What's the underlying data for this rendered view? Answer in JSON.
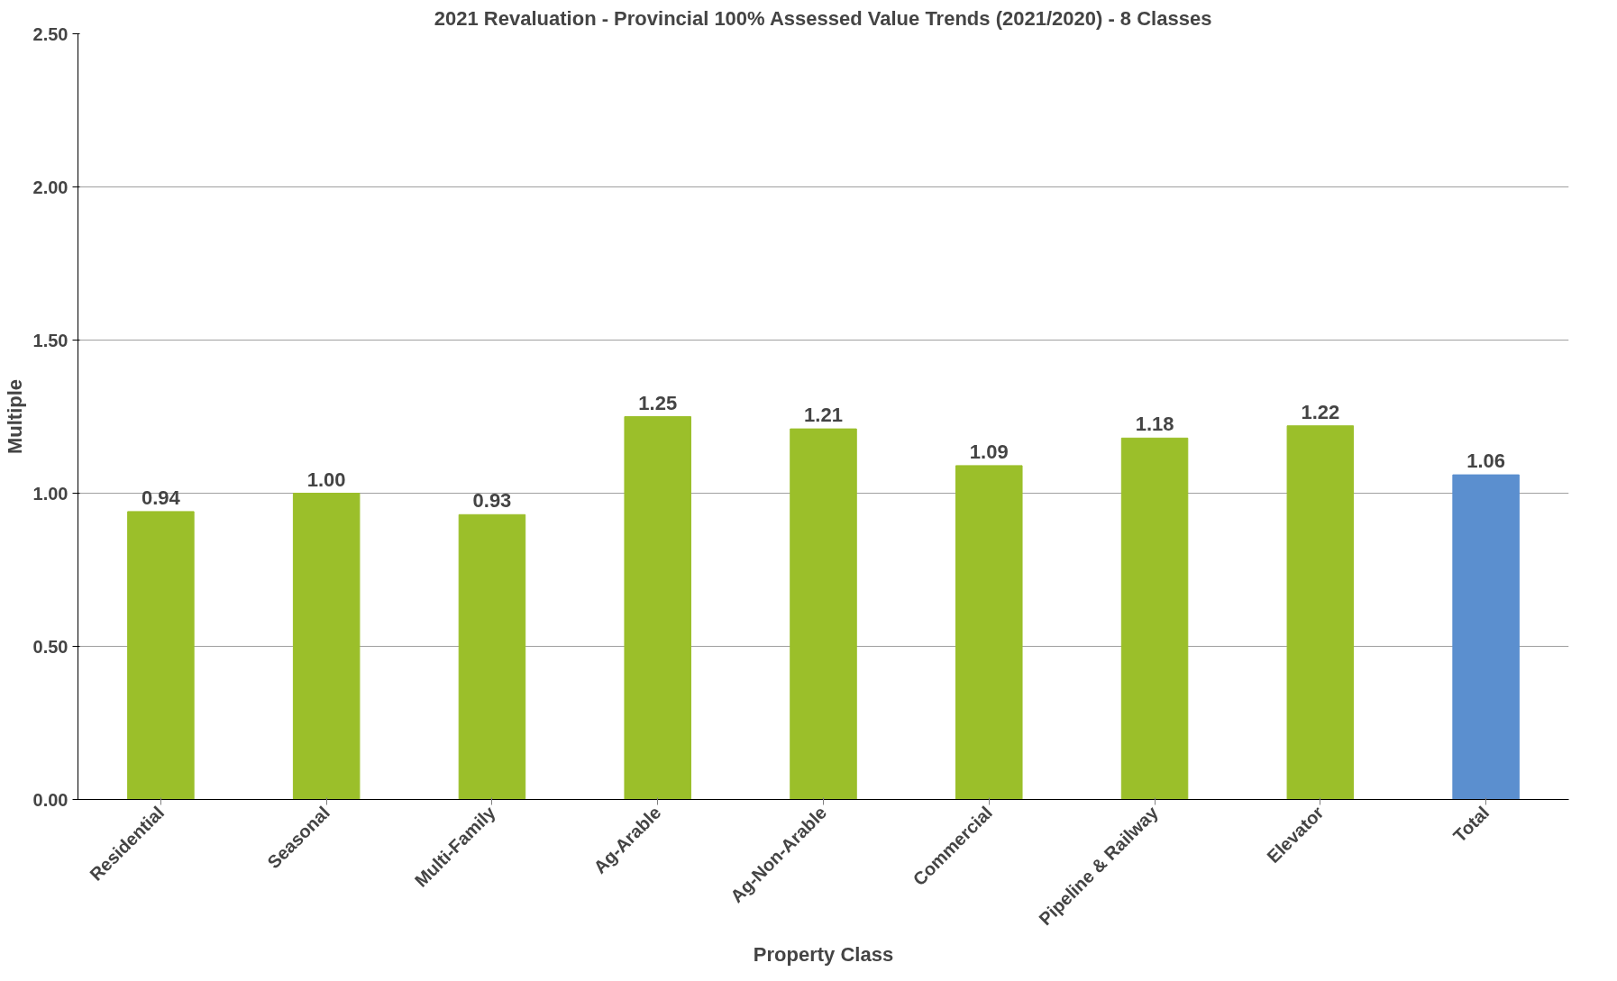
{
  "chart_data": {
    "type": "bar",
    "title": "2021 Revaluation - Provincial 100% Assessed Value Trends (2021/2020) - 8 Classes",
    "xlabel": "Property Class",
    "ylabel": "Multiple",
    "categories": [
      "Residential",
      "Seasonal",
      "Multi-Family",
      "Ag-Arable",
      "Ag-Non-Arable",
      "Commercial",
      "Pipeline & Railway",
      "Elevator",
      "Total"
    ],
    "values": [
      0.94,
      1.0,
      0.93,
      1.25,
      1.21,
      1.09,
      1.18,
      1.22,
      1.06
    ],
    "colors": [
      "#9bbf2a",
      "#9bbf2a",
      "#9bbf2a",
      "#9bbf2a",
      "#9bbf2a",
      "#9bbf2a",
      "#9bbf2a",
      "#9bbf2a",
      "#5b8fcf"
    ],
    "value_labels": [
      "0.94",
      "1.00",
      "0.93",
      "1.25",
      "1.21",
      "1.09",
      "1.18",
      "1.22",
      "1.06"
    ],
    "ylim": [
      0,
      2.5
    ],
    "yticks": [
      {
        "value": 0,
        "label": "0.00"
      },
      {
        "value": 0.5,
        "label": "0.50"
      },
      {
        "value": 1,
        "label": "1.00"
      },
      {
        "value": 1.5,
        "label": "1.50"
      },
      {
        "value": 2,
        "label": "2.00"
      },
      {
        "value": 2.5,
        "label": "2.50"
      }
    ],
    "grid": "y"
  }
}
